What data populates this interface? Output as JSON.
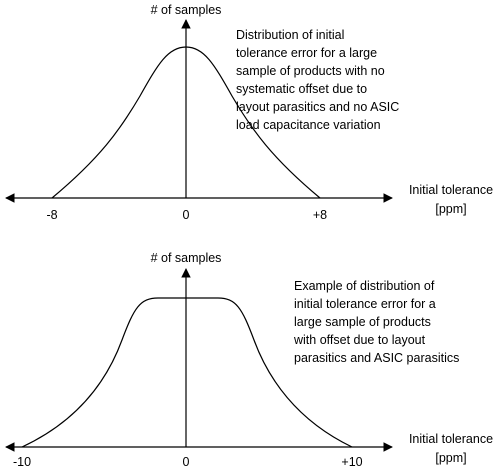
{
  "top_plot": {
    "y_label": "# of samples",
    "x_label_line1": "Initial tolerance",
    "x_label_line2": "[ppm]",
    "ticks": [
      "-8",
      "0",
      "+8"
    ],
    "caption_lines": [
      "Distribution of initial",
      "tolerance error for a large",
      "sample of products with no",
      "systematic offset due to",
      "layout parasitics and no ASIC",
      "load capacitance variation"
    ],
    "curve_shape": "bell"
  },
  "bottom_plot": {
    "y_label": "# of samples",
    "x_label_line1": "Initial tolerance",
    "x_label_line2": "[ppm]",
    "ticks": [
      "-10",
      "0",
      "+10"
    ],
    "caption_lines": [
      "Example of distribution of",
      "initial tolerance error for a",
      "large sample of products",
      "with offset due to layout",
      "parasitics and ASIC parasitics"
    ],
    "curve_shape": "flat-top"
  }
}
